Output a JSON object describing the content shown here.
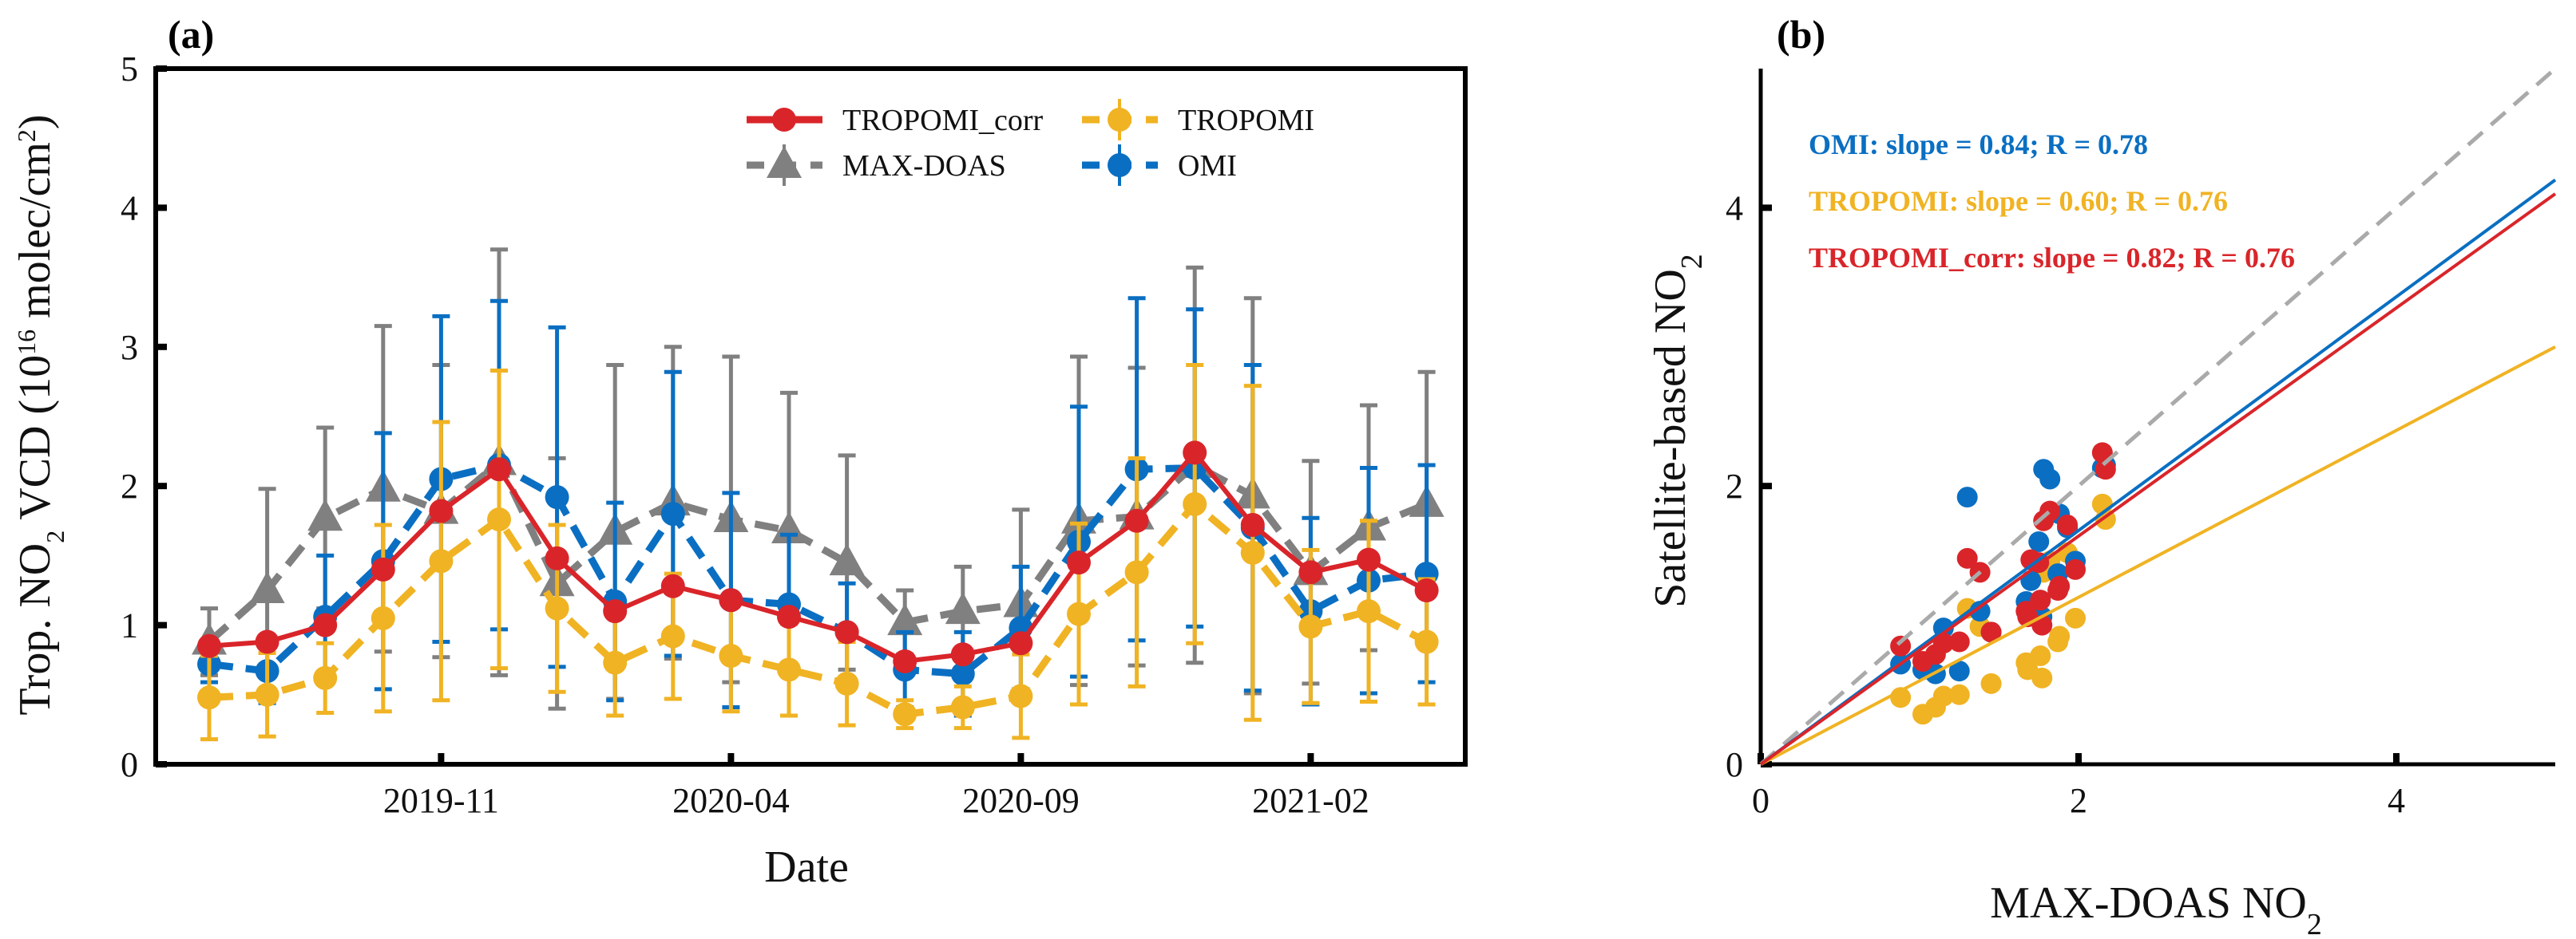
{
  "chart_data": [
    {
      "type": "line",
      "panel_label": "(a)",
      "xlabel": "Date",
      "ylabel": "Trop. NO",
      "ylabel_sub": "2",
      "ylabel_rest": " VCD (10",
      "ylabel_sup": "16",
      "ylabel_unit": " molec/cm",
      "ylabel_unit_sup": "2",
      "ylabel_close": ")",
      "ylim": [
        0,
        5
      ],
      "yticks": [
        "0",
        "1",
        "2",
        "3",
        "4",
        "5"
      ],
      "x": [
        "2019-07",
        "2019-08",
        "2019-09",
        "2019-10",
        "2019-11",
        "2019-12",
        "2020-01",
        "2020-02",
        "2020-03",
        "2020-04",
        "2020-05",
        "2020-06",
        "2020-07",
        "2020-08",
        "2020-09",
        "2020-10",
        "2020-11",
        "2020-12",
        "2021-01",
        "2021-02",
        "2021-03",
        "2021-04"
      ],
      "xticks": [
        {
          "index": 4,
          "label": "2019-11"
        },
        {
          "index": 9,
          "label": "2020-04"
        },
        {
          "index": 14,
          "label": "2020-09"
        },
        {
          "index": 19,
          "label": "2021-02"
        }
      ],
      "legend_position": "top-center",
      "series": [
        {
          "name": "TROPOMI_corr",
          "color": "#d9252a",
          "style": "solid",
          "marker": "circle",
          "values": [
            0.85,
            0.88,
            1.0,
            1.4,
            1.82,
            2.12,
            1.48,
            1.1,
            1.28,
            1.18,
            1.06,
            0.95,
            0.74,
            0.79,
            0.87,
            1.45,
            1.75,
            2.24,
            1.72,
            1.38,
            1.47,
            1.25
          ],
          "err": null
        },
        {
          "name": "TROPOMI",
          "color": "#f0b323",
          "style": "dashed",
          "marker": "circle",
          "values": [
            0.48,
            0.5,
            0.62,
            1.05,
            1.46,
            1.76,
            1.12,
            0.73,
            0.92,
            0.78,
            0.68,
            0.58,
            0.36,
            0.41,
            0.49,
            1.08,
            1.38,
            1.87,
            1.52,
            0.99,
            1.1,
            0.88
          ],
          "err": [
            0.3,
            0.3,
            0.25,
            0.67,
            1.0,
            1.07,
            0.6,
            0.38,
            0.45,
            0.4,
            0.33,
            0.3,
            0.1,
            0.15,
            0.3,
            0.65,
            0.82,
            1.0,
            1.2,
            0.55,
            0.65,
            0.45
          ]
        },
        {
          "name": "MAX-DOAS",
          "color": "#808080",
          "style": "dashed",
          "marker": "triangle",
          "values": [
            0.88,
            1.25,
            1.77,
            1.98,
            1.82,
            2.17,
            1.3,
            1.67,
            1.88,
            1.76,
            1.68,
            1.45,
            1.02,
            1.1,
            1.15,
            1.75,
            1.78,
            2.15,
            1.93,
            1.38,
            1.7,
            1.87
          ],
          "err": [
            0.24,
            0.73,
            0.65,
            1.17,
            1.05,
            1.53,
            0.9,
            1.2,
            1.12,
            1.17,
            0.99,
            0.77,
            0.23,
            0.32,
            0.68,
            1.18,
            1.07,
            1.42,
            1.42,
            0.8,
            0.88,
            0.95
          ]
        },
        {
          "name": "OMI",
          "color": "#0a6fc2",
          "style": "dashed",
          "marker": "circle",
          "values": [
            0.72,
            0.67,
            1.06,
            1.46,
            2.05,
            2.15,
            1.92,
            1.17,
            1.8,
            1.18,
            1.15,
            0.95,
            0.68,
            0.65,
            0.98,
            1.6,
            2.12,
            2.13,
            1.7,
            1.1,
            1.32,
            1.37
          ],
          "err": [
            0.13,
            0.23,
            0.44,
            0.92,
            1.17,
            1.18,
            1.22,
            0.71,
            1.02,
            0.77,
            0.5,
            0.35,
            0.27,
            0.3,
            0.44,
            0.97,
            1.23,
            1.14,
            1.17,
            0.67,
            0.81,
            0.78
          ]
        }
      ]
    },
    {
      "type": "scatter",
      "panel_label": "(b)",
      "xlabel": "MAX-DOAS NO",
      "xlabel_sub": "2",
      "ylabel": "Satellite-based NO",
      "ylabel_sub": "2",
      "xlim": [
        0,
        5
      ],
      "ylim": [
        0,
        5
      ],
      "xticks": [
        "0",
        "2",
        "4"
      ],
      "yticks": [
        "0",
        "2",
        "4"
      ],
      "x_source": "MAX-DOAS",
      "one_to_one_line": true,
      "fits": [
        {
          "name": "OMI",
          "color": "#0a6fc2",
          "slope": 0.84,
          "R": 0.78,
          "label": "OMI:  slope = 0.84;  R = 0.78"
        },
        {
          "name": "TROPOMI",
          "color": "#f0b323",
          "slope": 0.6,
          "R": 0.76,
          "label": "TROPOMI:  slope = 0.60;  R = 0.76"
        },
        {
          "name": "TROPOMI_corr",
          "color": "#d9252a",
          "slope": 0.82,
          "R": 0.76,
          "label": "TROPOMI_corr:  slope = 0.82;  R = 0.76"
        }
      ]
    }
  ]
}
